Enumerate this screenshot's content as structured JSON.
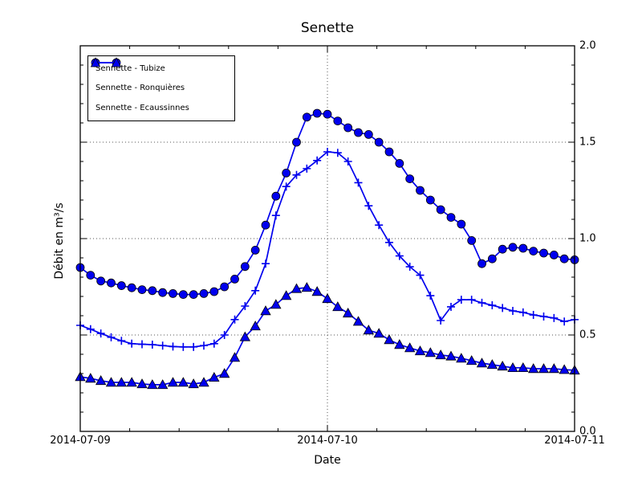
{
  "window": {
    "background": "#ffffff"
  },
  "chart_data": {
    "type": "line",
    "title": "Senette",
    "xlabel": "Date",
    "ylabel": "Débit en m³/s",
    "grid": true,
    "legend_position": "upper-left",
    "accent_color": "#0000ee",
    "marker_edge_color": "#000000",
    "grid_color": "#555555",
    "x_start": "2014-07-09 00:00",
    "x_step_hours": 1,
    "xlim_hours": [
      0,
      48
    ],
    "ylim": [
      0.0,
      2.0
    ],
    "x_ticks": [
      {
        "label": "2014-07-09",
        "hour": 0
      },
      {
        "label": "2014-07-10",
        "hour": 24
      },
      {
        "label": "2014-07-11",
        "hour": 48
      }
    ],
    "y_ticks": [
      {
        "label": "0.0",
        "value": 0.0
      },
      {
        "label": "0.5",
        "value": 0.5
      },
      {
        "label": "1.0",
        "value": 1.0
      },
      {
        "label": "1.5",
        "value": 1.5
      },
      {
        "label": "2.0",
        "value": 2.0
      }
    ],
    "y_minor_step": 0.1,
    "x_minor_fraction_step": 0.1,
    "grid_y_values": [
      0.5,
      1.0,
      1.5
    ],
    "grid_x_hours": [
      24
    ],
    "series": [
      {
        "name": "Sennette - Tubize",
        "marker": "circle",
        "values": [
          0.85,
          0.81,
          0.78,
          0.77,
          0.756,
          0.745,
          0.735,
          0.73,
          0.72,
          0.715,
          0.71,
          0.71,
          0.715,
          0.725,
          0.75,
          0.79,
          0.855,
          0.94,
          1.07,
          1.22,
          1.34,
          1.5,
          1.63,
          1.65,
          1.645,
          1.61,
          1.575,
          1.55,
          1.54,
          1.5,
          1.45,
          1.39,
          1.31,
          1.25,
          1.2,
          1.15,
          1.11,
          1.075,
          0.99,
          0.87,
          0.895,
          0.945,
          0.955,
          0.95,
          0.935,
          0.925,
          0.915,
          0.895,
          0.89
        ]
      },
      {
        "name": "Sennette - Ronquières",
        "marker": "plus",
        "values": [
          0.55,
          0.53,
          0.508,
          0.488,
          0.47,
          0.455,
          0.452,
          0.45,
          0.445,
          0.44,
          0.438,
          0.438,
          0.445,
          0.455,
          0.5,
          0.58,
          0.65,
          0.73,
          0.87,
          1.12,
          1.27,
          1.33,
          1.363,
          1.405,
          1.45,
          1.445,
          1.4,
          1.29,
          1.17,
          1.07,
          0.98,
          0.91,
          0.854,
          0.81,
          0.704,
          0.575,
          0.646,
          0.683,
          0.683,
          0.667,
          0.654,
          0.64,
          0.625,
          0.617,
          0.604,
          0.596,
          0.588,
          0.57,
          0.58
        ]
      },
      {
        "name": "Sennette - Ecaussinnes",
        "marker": "triangle",
        "values": [
          0.283,
          0.275,
          0.263,
          0.254,
          0.254,
          0.254,
          0.246,
          0.242,
          0.242,
          0.254,
          0.254,
          0.246,
          0.254,
          0.28,
          0.3,
          0.383,
          0.49,
          0.546,
          0.625,
          0.658,
          0.704,
          0.74,
          0.746,
          0.725,
          0.688,
          0.646,
          0.613,
          0.57,
          0.525,
          0.508,
          0.475,
          0.45,
          0.433,
          0.417,
          0.408,
          0.396,
          0.39,
          0.379,
          0.367,
          0.354,
          0.346,
          0.338,
          0.33,
          0.33,
          0.325,
          0.325,
          0.325,
          0.32,
          0.317
        ]
      }
    ]
  }
}
